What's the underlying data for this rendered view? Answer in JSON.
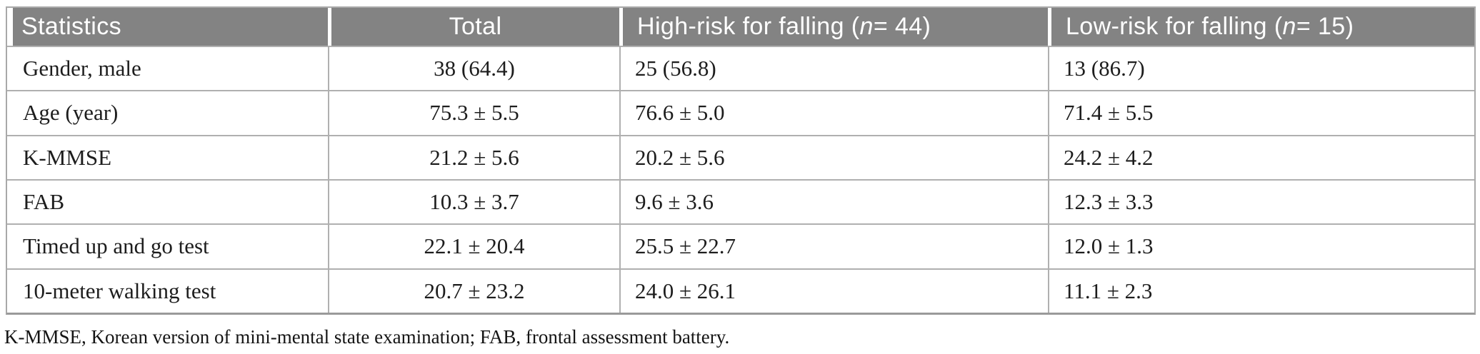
{
  "table": {
    "header": {
      "statistics": "Statistics",
      "total": "Total",
      "high_risk": {
        "prefix": "High-risk for falling (",
        "n_symbol": "n",
        "suffix": " = 44)"
      },
      "low_risk": {
        "prefix": "Low-risk for falling (",
        "n_symbol": "n",
        "suffix": " = 15)"
      }
    },
    "rows": [
      {
        "label": "Gender, male",
        "total": "38 (64.4)",
        "high_risk": "25 (56.8)",
        "low_risk": "13 (86.7)"
      },
      {
        "label": "Age (year)",
        "total": "75.3 ± 5.5",
        "high_risk": "76.6 ± 5.0",
        "low_risk": "71.4 ± 5.5"
      },
      {
        "label": "K-MMSE",
        "total": "21.2 ± 5.6",
        "high_risk": "20.2 ± 5.6",
        "low_risk": "24.2 ± 4.2"
      },
      {
        "label": "FAB",
        "total": "10.3 ± 3.7",
        "high_risk": "9.6 ± 3.6",
        "low_risk": "12.3 ± 3.3"
      },
      {
        "label": "Timed up and go test",
        "total": "22.1 ± 20.4",
        "high_risk": "25.5 ± 22.7",
        "low_risk": "12.0 ± 1.3"
      },
      {
        "label": "10-meter walking test",
        "total": "20.7 ± 23.2",
        "high_risk": "24.0 ± 26.1",
        "low_risk": "11.1 ± 2.3"
      }
    ],
    "footnote": "K-MMSE, Korean version of mini-mental state examination; FAB, frontal assessment battery."
  },
  "colors": {
    "header_bg": "#838383",
    "header_text": "#ffffff",
    "grid_border": "#b0b0b0",
    "outer_border": "#a9a9a9",
    "body_text": "#1d1d1d"
  }
}
